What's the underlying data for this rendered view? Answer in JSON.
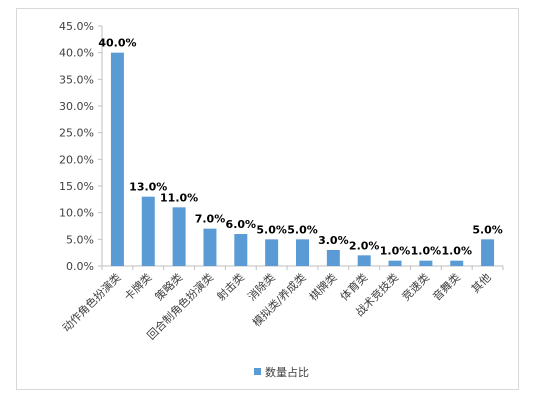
{
  "chart_data": {
    "type": "bar",
    "categories": [
      "动作角色扮演类",
      "卡牌类",
      "策略类",
      "回合制角色扮演类",
      "射击类",
      "消除类",
      "模拟类/养成类",
      "棋牌类",
      "体育类",
      "战术竞技类",
      "竞速类",
      "音舞类",
      "其他"
    ],
    "series": [
      {
        "name": "数量占比",
        "values": [
          40.0,
          13.0,
          11.0,
          7.0,
          6.0,
          5.0,
          5.0,
          3.0,
          2.0,
          1.0,
          1.0,
          1.0,
          5.0
        ],
        "data_labels": [
          "40.0%",
          "13.0%",
          "11.0%",
          "7.0%",
          "6.0%",
          "5.0%",
          "5.0%",
          "3.0%",
          "2.0%",
          "1.0%",
          "1.0%",
          "1.0%",
          "5.0%"
        ]
      }
    ],
    "y_tick_labels": [
      "0.0%",
      "5.0%",
      "10.0%",
      "15.0%",
      "20.0%",
      "25.0%",
      "30.0%",
      "35.0%",
      "40.0%",
      "45.0%"
    ],
    "ylim": [
      0,
      45
    ],
    "y_tick_step": 5,
    "grid": false,
    "legend_position": "bottom",
    "title": "",
    "xlabel": "",
    "ylabel": "",
    "colors": {
      "bar": "#5b9bd5",
      "axis": "#bfbfbf",
      "text": "#404040"
    }
  }
}
